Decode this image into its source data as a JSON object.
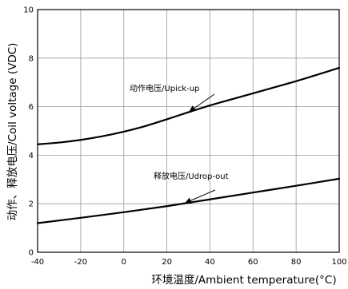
{
  "chart_data": {
    "type": "line",
    "xlabel": "环境温度/Ambient temperature(°C)",
    "ylabel": "动作、释放电压/Coil voltage (VDC)",
    "xlim": [
      -40,
      100
    ],
    "ylim": [
      0,
      10
    ],
    "x_ticks": [
      "-40",
      "-20",
      "0",
      "20",
      "40",
      "60",
      "80",
      "100"
    ],
    "y_ticks": [
      "0",
      "2",
      "4",
      "6",
      "8",
      "10"
    ],
    "grid": true,
    "series": [
      {
        "name": "动作电压/Upick-up",
        "x": [
          -40,
          -30,
          -20,
          -10,
          0,
          10,
          20,
          30,
          40,
          50,
          60,
          70,
          80,
          90,
          100
        ],
        "y": [
          4.45,
          4.52,
          4.63,
          4.78,
          4.97,
          5.2,
          5.48,
          5.77,
          6.05,
          6.3,
          6.55,
          6.8,
          7.05,
          7.32,
          7.6
        ]
      },
      {
        "name": "释放电压/Udrop-out",
        "x": [
          -40,
          -20,
          0,
          20,
          40,
          60,
          80,
          100
        ],
        "y": [
          1.2,
          1.42,
          1.65,
          1.9,
          2.18,
          2.46,
          2.74,
          3.03
        ]
      }
    ],
    "annotations": [
      {
        "text": "动作电压/Upick-up",
        "series": 0,
        "arrow_to_x": 30
      },
      {
        "text": "释放电压/Udrop-out",
        "series": 1,
        "arrow_to_x": 28
      }
    ]
  }
}
